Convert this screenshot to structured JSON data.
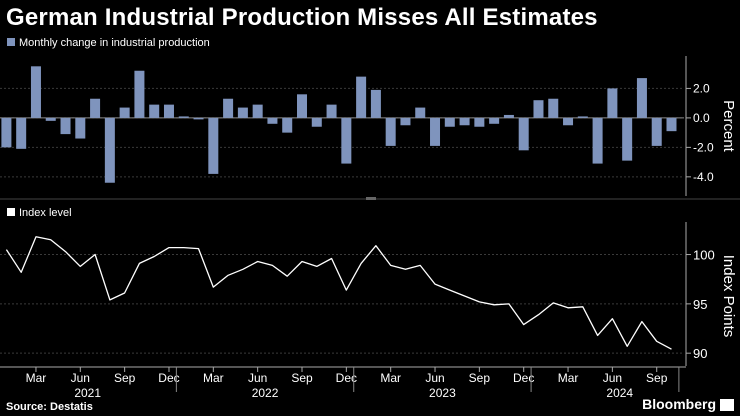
{
  "title": "German Industrial Production Misses All Estimates",
  "source": "Source: Destatis",
  "brand": "Bloomberg",
  "colors": {
    "background": "#000000",
    "bar": "#7f94bd",
    "line": "#ffffff",
    "text": "#ffffff",
    "grid": "#555555"
  },
  "chart_data": [
    {
      "type": "bar",
      "legend": "Monthly change in industrial production",
      "ylabel": "Percent",
      "ylim": [
        -5.3,
        4.2
      ],
      "yticks": [
        2,
        0,
        -2,
        -4
      ],
      "ytick_labels": [
        "2.0",
        "0.0",
        "-2.0",
        "-4.0"
      ],
      "x_start": "2021-01",
      "values": [
        -2.0,
        -2.1,
        3.5,
        -0.2,
        -1.1,
        -1.4,
        1.3,
        -4.4,
        0.7,
        3.2,
        0.9,
        0.9,
        0.1,
        -0.1,
        -3.8,
        1.3,
        0.7,
        0.9,
        -0.4,
        -1.0,
        1.6,
        -0.6,
        0.9,
        -3.1,
        2.8,
        1.9,
        -1.9,
        -0.5,
        0.7,
        -1.9,
        -0.6,
        -0.5,
        -0.6,
        -0.4,
        0.2,
        -2.2,
        1.2,
        1.3,
        -0.5,
        0.1,
        -3.1,
        2.0,
        -2.9,
        2.7,
        -1.9,
        -0.9
      ]
    },
    {
      "type": "line",
      "legend": "Index level",
      "ylabel": "Index Points",
      "ylim": [
        88.7,
        103.3
      ],
      "yticks": [
        100,
        95,
        90
      ],
      "ytick_labels": [
        "100",
        "95",
        "90"
      ],
      "x_start": "2021-01",
      "values": [
        100.5,
        98.2,
        101.8,
        101.5,
        100.3,
        98.8,
        100.0,
        95.4,
        96.1,
        99.1,
        99.8,
        100.7,
        100.7,
        100.6,
        96.7,
        97.9,
        98.5,
        99.3,
        98.9,
        97.8,
        99.3,
        98.8,
        99.6,
        96.4,
        99.1,
        100.9,
        98.9,
        98.5,
        98.9,
        97.0,
        96.4,
        95.8,
        95.2,
        94.9,
        95.0,
        92.9,
        93.9,
        95.1,
        94.6,
        94.7,
        91.8,
        93.5,
        90.7,
        93.2,
        91.2,
        90.4
      ]
    }
  ],
  "x_axis": {
    "month_labels": [
      "Mar",
      "Jun",
      "Sep",
      "Dec",
      "Mar",
      "Jun",
      "Sep",
      "Dec",
      "Mar",
      "Jun",
      "Sep",
      "Dec",
      "Mar",
      "Jun",
      "Sep"
    ],
    "month_indices": [
      2,
      5,
      8,
      11,
      14,
      17,
      20,
      23,
      26,
      29,
      32,
      35,
      38,
      41,
      44
    ],
    "year_labels": [
      "2021",
      "2022",
      "2023",
      "2024"
    ],
    "year_centers": [
      5.5,
      17.5,
      29.5,
      41.5
    ],
    "year_boundaries": [
      0,
      12,
      24,
      36,
      46
    ]
  }
}
